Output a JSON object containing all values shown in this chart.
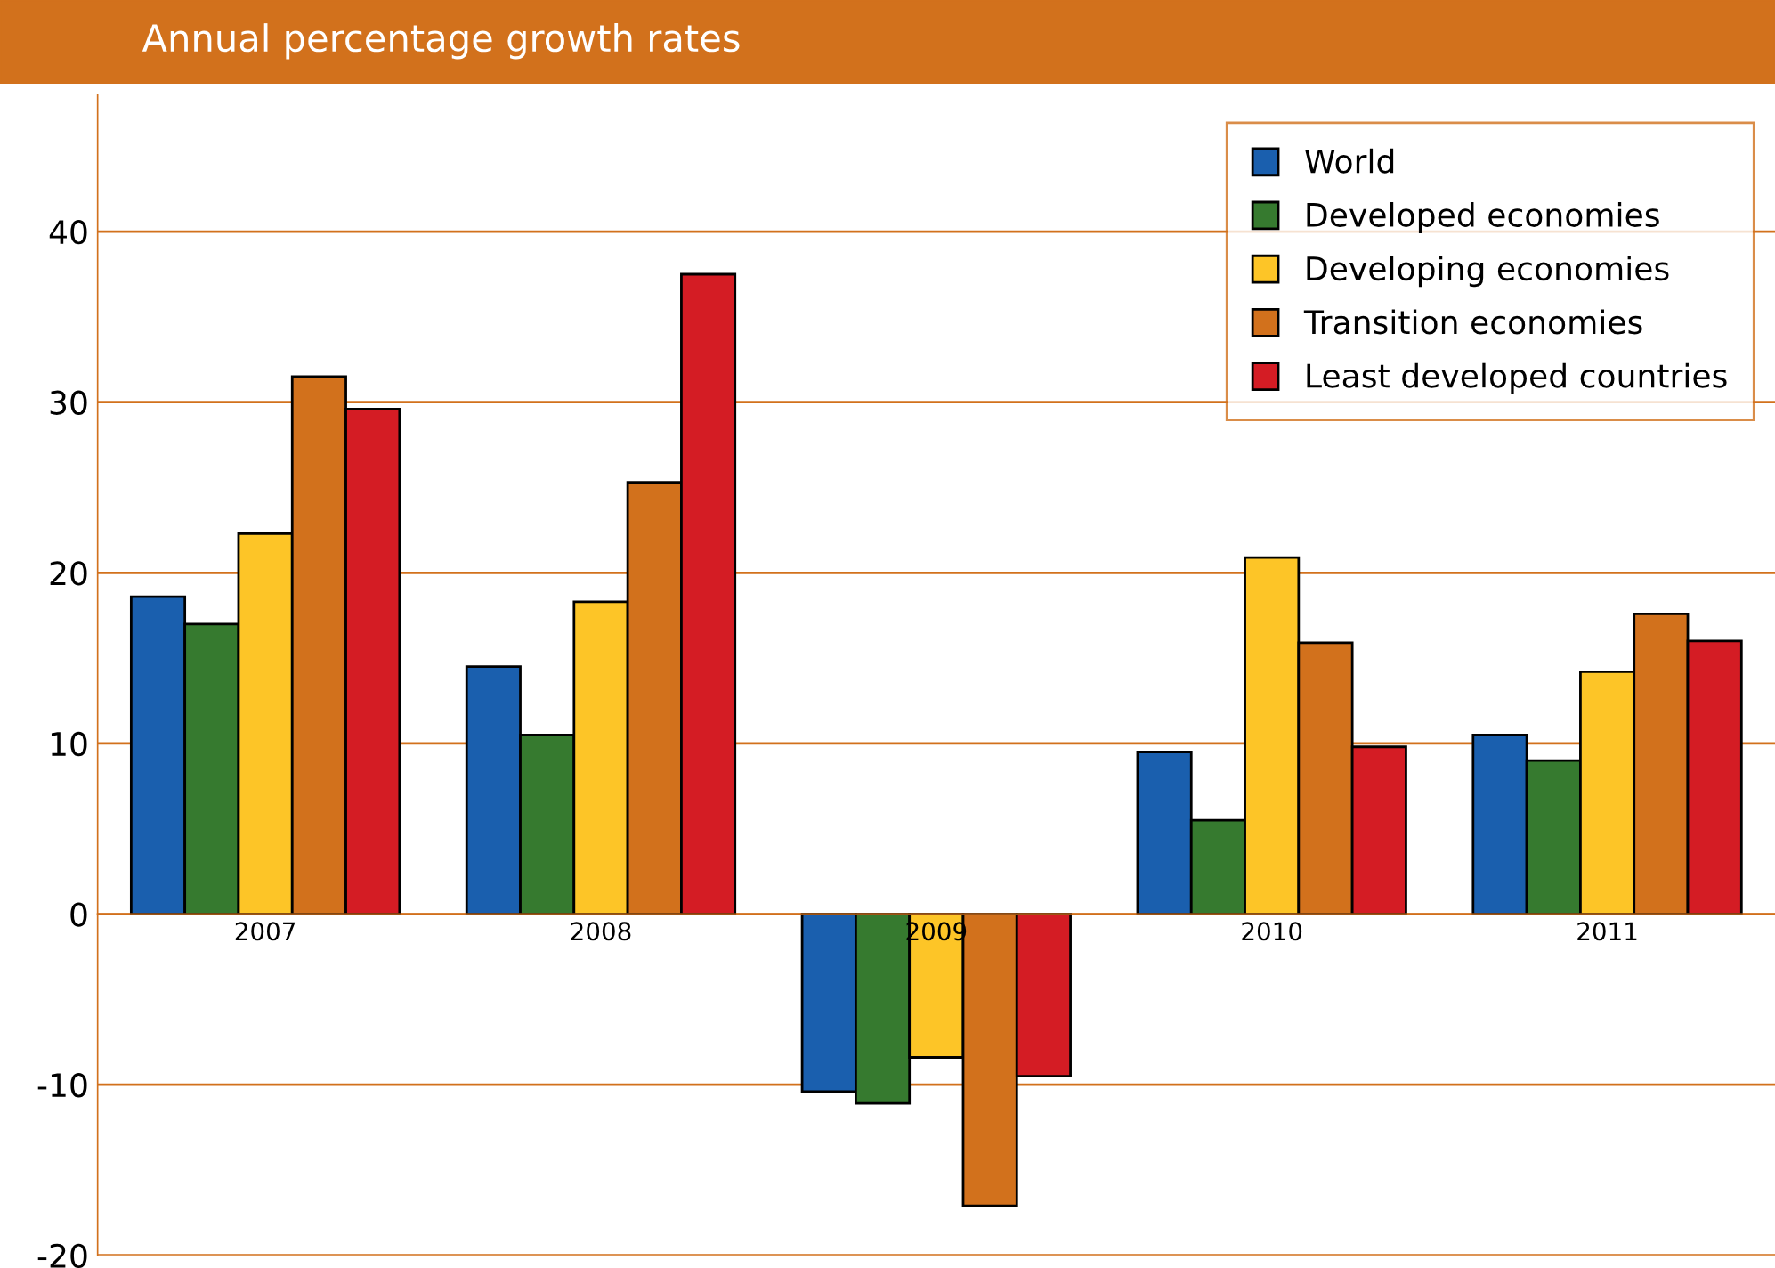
{
  "chart_data": {
    "type": "bar",
    "title": "Annual percentage growth rates",
    "categories": [
      "2007",
      "2008",
      "2009",
      "2010",
      "2011"
    ],
    "series": [
      {
        "name": "World",
        "color": "#1a5fae",
        "values": [
          18.6,
          14.5,
          -10.4,
          9.5,
          10.5
        ]
      },
      {
        "name": "Developed economies",
        "color": "#367a2f",
        "values": [
          17.0,
          10.5,
          -11.1,
          5.5,
          9.0
        ]
      },
      {
        "name": "Developing economies",
        "color": "#fdc527",
        "values": [
          22.3,
          18.3,
          -8.4,
          20.9,
          14.2
        ]
      },
      {
        "name": "Transition economies",
        "color": "#d2711c",
        "values": [
          31.5,
          25.3,
          -17.1,
          15.9,
          17.6
        ]
      },
      {
        "name": "Least developed countries",
        "color": "#d41c24",
        "values": [
          29.6,
          37.5,
          -9.5,
          9.8,
          16.0
        ]
      }
    ],
    "ylim": [
      -20,
      48
    ],
    "yticks": [
      -20,
      -10,
      0,
      10,
      20,
      30,
      40
    ],
    "grid": "y",
    "legend": "top right"
  }
}
